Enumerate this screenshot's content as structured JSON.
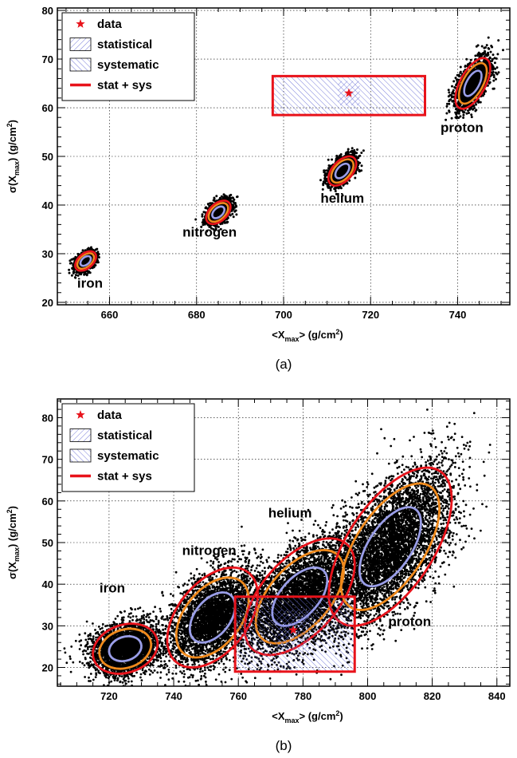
{
  "colors": {
    "data_star": "#e8131b",
    "stat_sys": "#e8131b",
    "ring_orange": "#f08a1c",
    "ring_blue": "#9a9ee8",
    "hatch": "#6a6fd6",
    "points": "#000000",
    "grid": "#000000"
  },
  "legend": {
    "data": "data",
    "statistical": "statistical",
    "systematic": "systematic",
    "stat_sys": "stat + sys"
  },
  "chart_data": [
    {
      "panel_label": "(a)",
      "type": "scatter",
      "xlabel_main": "<X",
      "xlabel_sub": "max",
      "xlabel_tail": "> (g/cm",
      "xlabel_sup": "2",
      "xlabel_end": ")",
      "ylabel_main": "σ(X",
      "ylabel_sub": "max",
      "ylabel_tail": ") (g/cm",
      "ylabel_sup": "2",
      "ylabel_end": ")",
      "xlim": [
        648,
        752
      ],
      "ylim": [
        19.5,
        80.5
      ],
      "xticks": [
        660,
        680,
        700,
        720,
        740
      ],
      "yticks": [
        20,
        30,
        40,
        50,
        60,
        70,
        80
      ],
      "grid": true,
      "legend_position": "top-left",
      "data_point": {
        "x": 715,
        "y": 63
      },
      "stat_box": {
        "x": [
          712.5,
          717.5
        ],
        "y": [
          60.5,
          65.5
        ]
      },
      "sys_box": {
        "x": [
          697.5,
          732.5
        ],
        "y": [
          58.5,
          66.5
        ]
      },
      "components": [
        {
          "name": "iron",
          "label": "iron",
          "mean_x": 654.5,
          "mean_y": 28.5,
          "sd_x": 1.2,
          "sd_y": 1.0,
          "rho": 0.45,
          "n": 1500,
          "label_x": 655.5,
          "label_y": 23.0
        },
        {
          "name": "nitrogen",
          "label": "nitrogen",
          "mean_x": 685.0,
          "mean_y": 38.5,
          "sd_x": 1.4,
          "sd_y": 1.2,
          "rho": 0.45,
          "n": 1500,
          "label_x": 683.0,
          "label_y": 33.5
        },
        {
          "name": "helium",
          "label": "helium",
          "mean_x": 713.5,
          "mean_y": 47.0,
          "sd_x": 1.6,
          "sd_y": 1.5,
          "rho": 0.5,
          "n": 1500,
          "label_x": 713.5,
          "label_y": 40.5
        },
        {
          "name": "proton",
          "label": "proton",
          "mean_x": 743.5,
          "mean_y": 65.0,
          "sd_x": 2.0,
          "sd_y": 2.6,
          "rho": 0.6,
          "n": 1800,
          "label_x": 741.0,
          "label_y": 55.0
        }
      ],
      "ring_levels": [
        1.0,
        1.6,
        2.0
      ]
    },
    {
      "panel_label": "(b)",
      "type": "scatter",
      "xlabel_main": "<X",
      "xlabel_sub": "max",
      "xlabel_tail": "> (g/cm",
      "xlabel_sup": "2",
      "xlabel_end": ")",
      "ylabel_main": "σ(X",
      "ylabel_sub": "max",
      "ylabel_tail": ") (g/cm",
      "ylabel_sup": "2",
      "ylabel_end": ")",
      "xlim": [
        704,
        844
      ],
      "ylim": [
        15.5,
        84.5
      ],
      "xticks": [
        720,
        740,
        760,
        780,
        800,
        820,
        840
      ],
      "yticks": [
        20,
        30,
        40,
        50,
        60,
        70,
        80
      ],
      "grid": true,
      "legend_position": "top-left",
      "data_point": {
        "x": 777,
        "y": 29
      },
      "stat_box": {
        "x": [
          772,
          782
        ],
        "y": [
          24,
          34
        ]
      },
      "sys_box": {
        "x": [
          759,
          796
        ],
        "y": [
          19,
          37
        ]
      },
      "components": [
        {
          "name": "iron",
          "label": "iron",
          "mean_x": 725,
          "mean_y": 24.5,
          "sd_x": 5.0,
          "sd_y": 3.0,
          "rho": 0.2,
          "n": 3000,
          "label_x": 721,
          "label_y": 38
        },
        {
          "name": "nitrogen",
          "label": "nitrogen",
          "mean_x": 752,
          "mean_y": 32.0,
          "sd_x": 7.0,
          "sd_y": 6.0,
          "rho": 0.45,
          "n": 3500,
          "label_x": 751,
          "label_y": 47
        },
        {
          "name": "helium",
          "label": "helium",
          "mean_x": 779,
          "mean_y": 37.0,
          "sd_x": 8.5,
          "sd_y": 7.0,
          "rho": 0.55,
          "n": 4000,
          "label_x": 776,
          "label_y": 56
        },
        {
          "name": "proton",
          "label": "proton",
          "mean_x": 807,
          "mean_y": 49.0,
          "sd_x": 9.5,
          "sd_y": 9.5,
          "rho": 0.6,
          "n": 5000,
          "label_x": 813,
          "label_y": 30
        }
      ],
      "ring_levels": [
        1.0,
        1.6,
        2.0
      ]
    }
  ]
}
